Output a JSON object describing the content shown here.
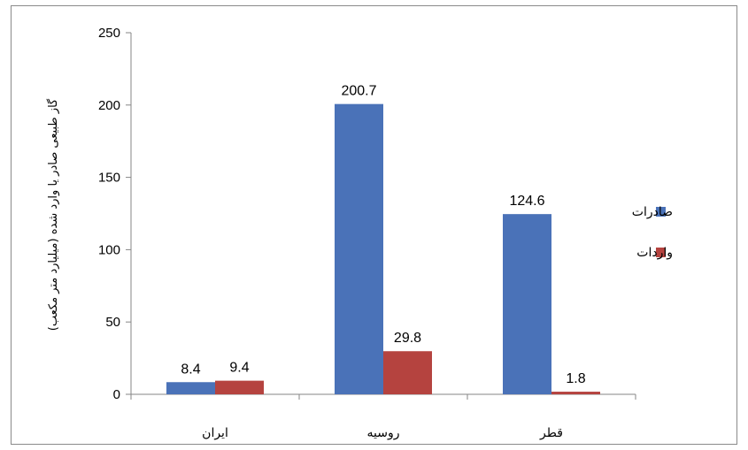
{
  "chart_data": {
    "type": "bar",
    "categories": [
      "ایران",
      "روسیه",
      "قطر"
    ],
    "series": [
      {
        "name": "صادرات",
        "values": [
          8.4,
          200.7,
          124.6
        ],
        "color": "#4a72b8"
      },
      {
        "name": "واردات",
        "values": [
          9.4,
          29.8,
          1.8
        ],
        "color": "#b5433f"
      }
    ],
    "data_labels": [
      [
        "8.4",
        "9.4"
      ],
      [
        "200.7",
        "29.8"
      ],
      [
        "124.6",
        "1.8"
      ]
    ],
    "title": "",
    "xlabel": "",
    "ylabel": "گاز طبیعی صادر یا وارد شده (میلیارد متر مکعب)",
    "ylim": [
      0,
      250
    ],
    "yticks": [
      "0",
      "50",
      "100",
      "150",
      "200",
      "250"
    ],
    "grid": false,
    "legend_position": "right"
  }
}
